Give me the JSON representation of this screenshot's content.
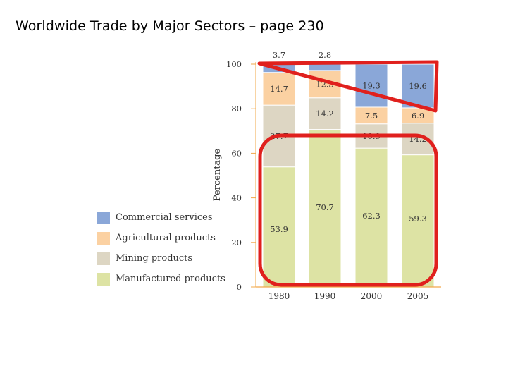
{
  "slide": {
    "title": "Worldwide Trade by Major Sectors – page 230"
  },
  "colors": {
    "commercial_services": "#8aa7d8",
    "agricultural_products": "#fbd1a2",
    "mining_products": "#ddd6c3",
    "manufactured_products": "#dde3a4",
    "annotation": "#e0201d",
    "axis": "#f2a84a"
  },
  "chart_data": {
    "type": "bar",
    "stacked": true,
    "categories": [
      "1980",
      "1990",
      "2000",
      "2005"
    ],
    "series": [
      {
        "name": "Manufactured products",
        "values": [
          53.9,
          70.7,
          62.3,
          59.3
        ]
      },
      {
        "name": "Mining products",
        "values": [
          27.7,
          14.2,
          10.9,
          14.2
        ]
      },
      {
        "name": "Agricultural products",
        "values": [
          14.7,
          12.3,
          7.5,
          6.9
        ]
      },
      {
        "name": "Commercial services",
        "values": [
          3.7,
          2.8,
          19.3,
          19.6
        ]
      }
    ],
    "ylabel": "Percentage",
    "ylim": [
      0,
      100
    ],
    "yticks": [
      "0",
      "20",
      "40",
      "60",
      "80",
      "100"
    ],
    "legend_position": "left"
  }
}
